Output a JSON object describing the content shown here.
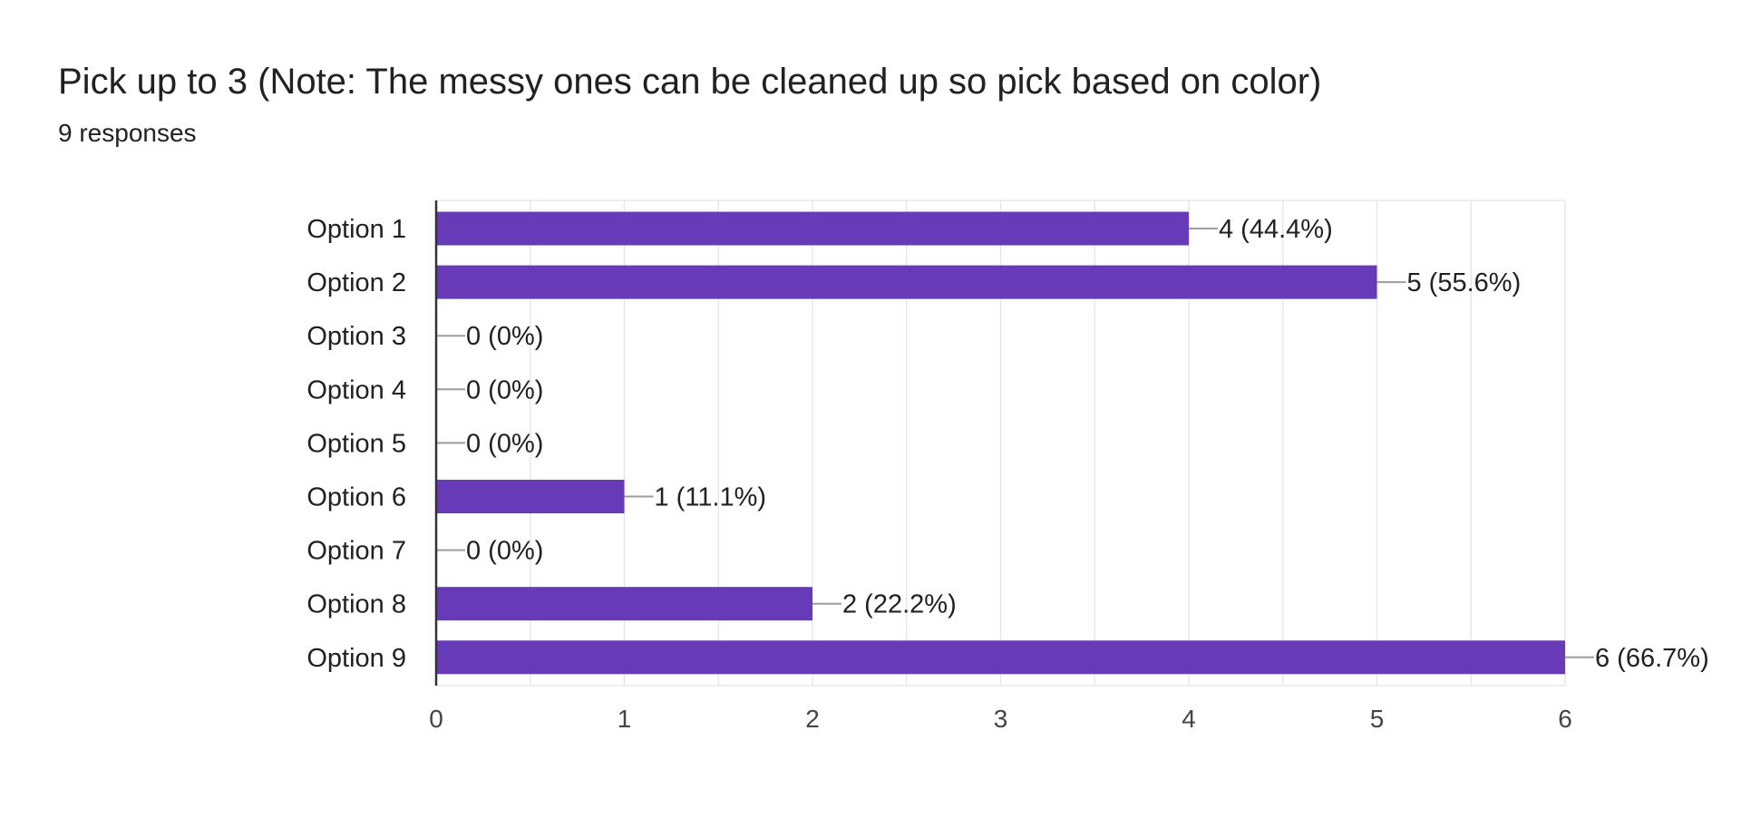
{
  "header": {
    "title": "Pick up to 3 (Note: The messy ones can be cleaned up so pick based on color)",
    "responses": "9 responses"
  },
  "colors": {
    "bar": "#673ab7",
    "grid": "#e8e8e8",
    "axis": "#333333",
    "leader": "#9e9e9e",
    "text": "#202124",
    "tick": "#444444"
  },
  "chart_data": {
    "type": "bar",
    "orientation": "horizontal",
    "categories": [
      "Option 1",
      "Option 2",
      "Option 3",
      "Option 4",
      "Option 5",
      "Option 6",
      "Option 7",
      "Option 8",
      "Option 9"
    ],
    "values": [
      4,
      5,
      0,
      0,
      0,
      1,
      0,
      2,
      6
    ],
    "data_labels": [
      "4 (44.4%)",
      "5 (55.6%)",
      "0 (0%)",
      "0 (0%)",
      "0 (0%)",
      "1 (11.1%)",
      "0 (0%)",
      "2 (22.2%)",
      "6 (66.7%)"
    ],
    "x_ticks": [
      "0",
      "1",
      "2",
      "3",
      "4",
      "5",
      "6"
    ],
    "xlim": [
      0,
      6
    ],
    "grid": true,
    "title": "Pick up to 3 (Note: The messy ones can be cleaned up so pick based on color)",
    "xlabel": "",
    "ylabel": ""
  }
}
